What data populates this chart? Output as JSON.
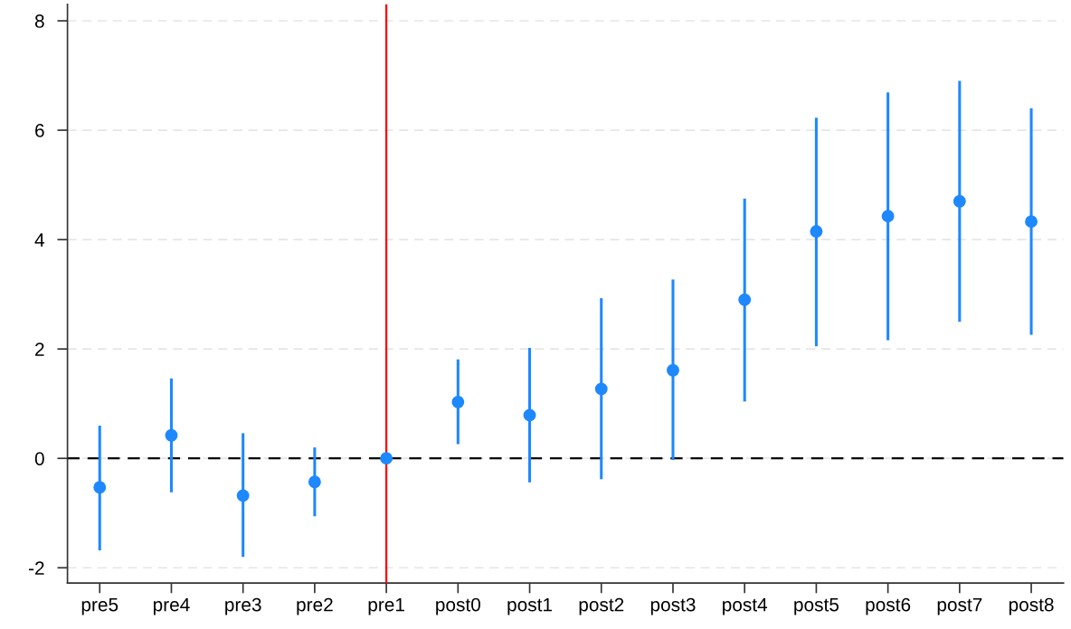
{
  "chart_data": {
    "type": "scatter",
    "categories": [
      "pre5",
      "pre4",
      "pre3",
      "pre2",
      "pre1",
      "post0",
      "post1",
      "post2",
      "post3",
      "post4",
      "post5",
      "post6",
      "post7",
      "post8"
    ],
    "series": [
      {
        "color": "#1e88ff",
        "values": [
          -0.53,
          0.42,
          -0.68,
          -0.43,
          0,
          1.03,
          0.79,
          1.27,
          1.61,
          2.9,
          4.15,
          4.43,
          4.7,
          4.33
        ],
        "errors": [
          [
            -1.68,
            0.6
          ],
          [
            -0.62,
            1.46
          ],
          [
            -1.8,
            0.46
          ],
          [
            -1.06,
            0.2
          ],
          null,
          [
            0.26,
            1.81
          ],
          [
            -0.44,
            2.02
          ],
          [
            -0.38,
            2.93
          ],
          [
            -0.03,
            3.27
          ],
          [
            1.04,
            4.75
          ],
          [
            2.05,
            6.23
          ],
          [
            2.16,
            6.69
          ],
          [
            2.5,
            6.9
          ],
          [
            2.26,
            6.4
          ]
        ]
      }
    ],
    "ylim": [
      -2.28,
      8.3
    ],
    "yticks": [
      -2,
      0,
      2,
      4,
      6,
      8
    ],
    "grid": "y",
    "marker": "circle",
    "ref_lines": [
      {
        "axis": "y",
        "value": 0,
        "color": "#000000",
        "line_style": "dashed"
      },
      {
        "axis": "x",
        "value": "pre1",
        "color": "#ff0000",
        "line_style": "solid"
      }
    ]
  }
}
